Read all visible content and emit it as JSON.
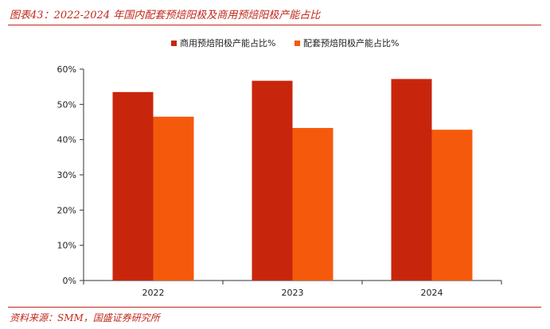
{
  "figure": {
    "title": "图表43：2022-2024 年国内配套预焙阳极及商用预焙阳极产能占比",
    "source": "资料来源：SMM，国盛证券研究所"
  },
  "chart_data": {
    "type": "bar",
    "title": "",
    "xlabel": "",
    "ylabel": "",
    "categories": [
      "2022",
      "2023",
      "2024"
    ],
    "series": [
      {
        "name": "商用预焙阳极产能占比%",
        "values": [
          53.5,
          56.7,
          57.2
        ],
        "color": "#c8260c"
      },
      {
        "name": "配套预焙阳极产能占比%",
        "values": [
          46.5,
          43.3,
          42.8
        ],
        "color": "#f55a0c"
      }
    ],
    "ylim": [
      0,
      60
    ],
    "yticks": [
      "0%",
      "10%",
      "20%",
      "30%",
      "40%",
      "50%",
      "60%"
    ],
    "grid": false,
    "legend": "top-center"
  }
}
